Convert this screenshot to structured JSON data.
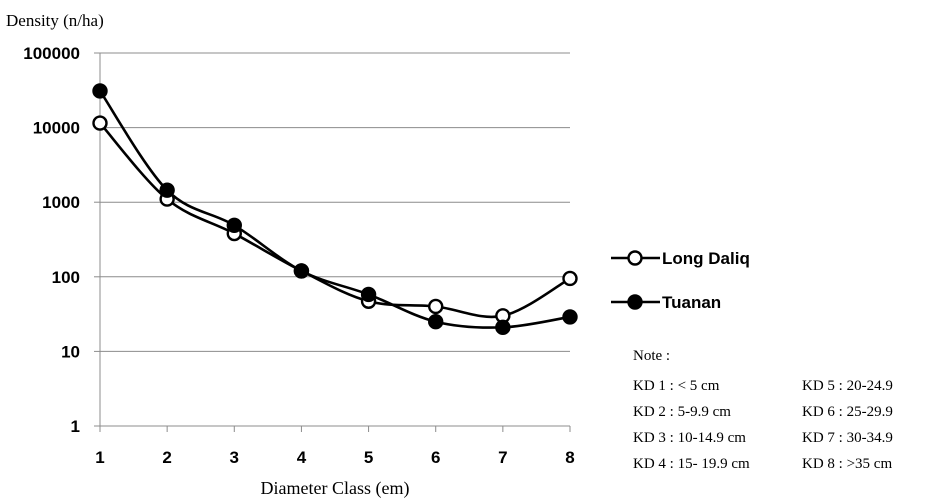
{
  "chart_data": {
    "type": "line",
    "ylabel": "Density (n/ha)",
    "xlabel": "Diameter Class (em)",
    "y_scale": "log",
    "ylim": [
      1,
      100000
    ],
    "y_ticks": [
      "1",
      "10",
      "100",
      "1000",
      "10000",
      "100000"
    ],
    "y_tick_values": [
      1,
      10,
      100,
      1000,
      10000,
      100000
    ],
    "categories": [
      "1",
      "2",
      "3",
      "4",
      "5",
      "6",
      "7",
      "8"
    ],
    "grid": "horizontal",
    "legend_position": "right",
    "series": [
      {
        "name": "Long Daliq",
        "marker": "open-circle",
        "color": "#000000",
        "values": [
          11500,
          1100,
          380,
          120,
          47,
          40,
          30,
          95
        ]
      },
      {
        "name": "Tuanan",
        "marker": "filled-circle",
        "color": "#000000",
        "values": [
          31000,
          1450,
          490,
          120,
          58,
          25,
          21,
          29
        ]
      }
    ],
    "note": {
      "title": "Note :",
      "lines": [
        [
          "KD 1 : < 5 cm",
          "KD 5 : 20-24.9"
        ],
        [
          "KD 2 : 5-9.9 cm",
          "KD 6 : 25-29.9"
        ],
        [
          "KD 3 : 10-14.9 cm",
          "KD 7 : 30-34.9"
        ],
        [
          "KD 4 : 15- 19.9 cm",
          "KD 8 : >35 cm"
        ]
      ]
    }
  }
}
